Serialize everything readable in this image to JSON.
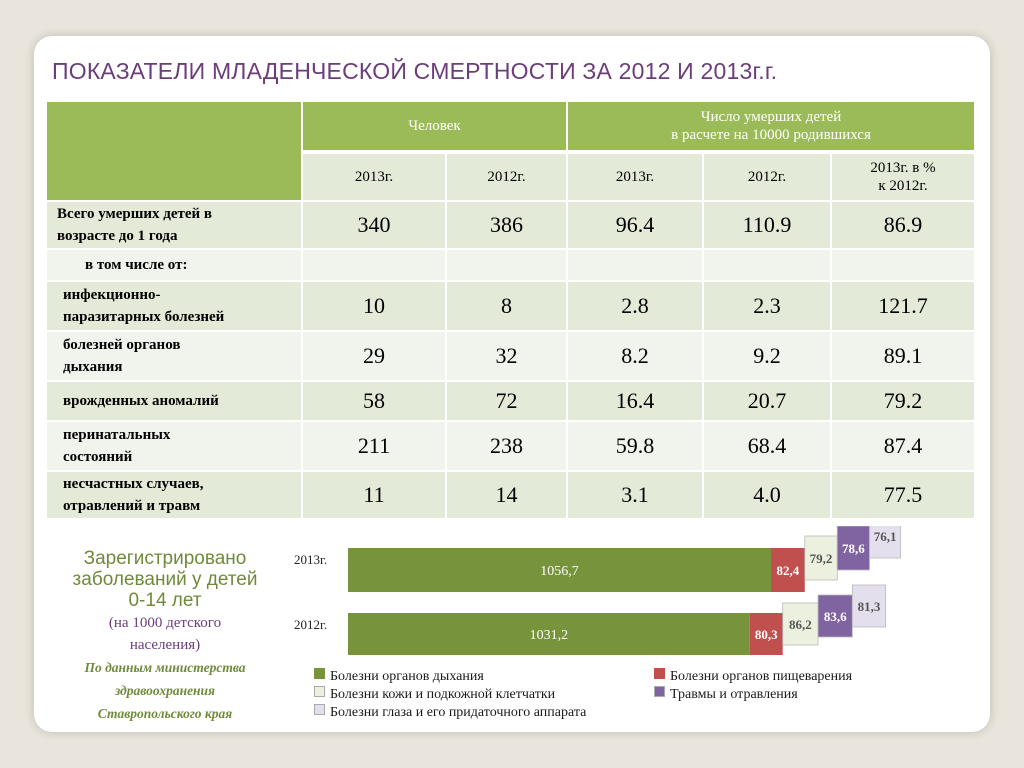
{
  "title": "ПОКАЗАТЕЛИ МЛАДЕНЧЕСКОЙ СМЕРТНОСТИ  ЗА  2012 И 2013г.г.",
  "table": {
    "group_people": "Человек",
    "group_rate_line1": "Число умерших детей",
    "group_rate_line2": "в расчете на 10000 родившихся",
    "col_2013": "2013г.",
    "col_2012": "2012г.",
    "col_pct_line1": "2013г. в %",
    "col_pct_line2": "к  2012г.",
    "rows": [
      {
        "label_line1": "Всего умерших детей в",
        "label_line2": "возрасте до 1 года",
        "p2013": "340",
        "p2012": "386",
        "r2013": "96.4",
        "r2012": "110.9",
        "pct": "86.9"
      },
      {
        "label_line1": "в том числе от:",
        "label_line2": "",
        "p2013": "",
        "p2012": "",
        "r2013": "",
        "r2012": "",
        "pct": ""
      },
      {
        "label_line1": "инфекционно-",
        "label_line2": "паразитарных болезней",
        "p2013": "10",
        "p2012": "8",
        "r2013": "2.8",
        "r2012": "2.3",
        "pct": "121.7"
      },
      {
        "label_line1": "болезней органов",
        "label_line2": "дыхания",
        "p2013": "29",
        "p2012": "32",
        "r2013": "8.2",
        "r2012": "9.2",
        "pct": "89.1"
      },
      {
        "label_line1": "врожденных аномалий",
        "label_line2": "",
        "p2013": "58",
        "p2012": "72",
        "r2013": "16.4",
        "r2012": "20.7",
        "pct": "79.2"
      },
      {
        "label_line1": "перинатальных",
        "label_line2": "состояний",
        "p2013": "211",
        "p2012": "238",
        "r2013": "59.8",
        "r2012": "68.4",
        "pct": "87.4"
      },
      {
        "label_line1": "несчастных случаев,",
        "label_line2": "отравлений и травм",
        "p2013": "11",
        "p2012": "14",
        "r2013": "3.1",
        "r2012": "4.0",
        "pct": "77.5"
      }
    ]
  },
  "caption": {
    "line1": "Зарегистрировано",
    "line2": "заболеваний у детей",
    "line3": "0-14 лет",
    "line4": "(на 1000 детского",
    "line5": "населения)",
    "src1": "По данным министерства",
    "src2": "здравоохранения",
    "src3": "Ставропольского края"
  },
  "chart_data": {
    "type": "bar",
    "orientation": "horizontal",
    "stacked": true,
    "categories": [
      "2013г.",
      "2012г."
    ],
    "value_labels": {
      "2013г.": [
        "1056,7",
        "82,4",
        "79,2",
        "78,6",
        "76,1"
      ],
      "2012г.": [
        "1031,2",
        "80,3",
        "86,2",
        "83,6",
        "81,3"
      ]
    },
    "series": [
      {
        "name": "Болезни органов дыхания",
        "values": [
          1056.7,
          1031.2
        ],
        "color": "#77933c"
      },
      {
        "name": "Болезни органов пищеварения",
        "values": [
          82.4,
          80.3
        ],
        "color": "#c0504d"
      },
      {
        "name": "Болезни кожи и подкожной клетчатки",
        "values": [
          79.2,
          86.2
        ],
        "color": "#ebf1de"
      },
      {
        "name": "Травмы и отравления",
        "values": [
          78.6,
          83.6
        ],
        "color": "#8064a2"
      },
      {
        "name": "Болезни глаза и его придаточного аппарата",
        "values": [
          76.1,
          81.3
        ],
        "color": "#e4dfec"
      }
    ],
    "legend_position": "bottom",
    "grid": false
  }
}
